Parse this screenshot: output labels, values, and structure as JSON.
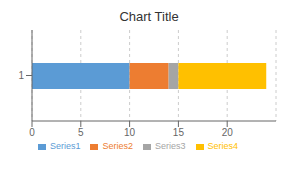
{
  "chart_data": {
    "type": "bar",
    "orientation": "horizontal",
    "stacked": true,
    "title": "Chart Title",
    "categories": [
      "1"
    ],
    "series": [
      {
        "name": "Series1",
        "values": [
          10
        ],
        "color": "#5B9BD5"
      },
      {
        "name": "Series2",
        "values": [
          4
        ],
        "color": "#ED7D31"
      },
      {
        "name": "Series3",
        "values": [
          1
        ],
        "color": "#A5A5A5"
      },
      {
        "name": "Series4",
        "values": [
          9
        ],
        "color": "#FFC000"
      }
    ],
    "xlim": [
      0,
      25
    ],
    "xticks": [
      0,
      5,
      10,
      15,
      20
    ],
    "grid": true,
    "legend": "bottom"
  }
}
